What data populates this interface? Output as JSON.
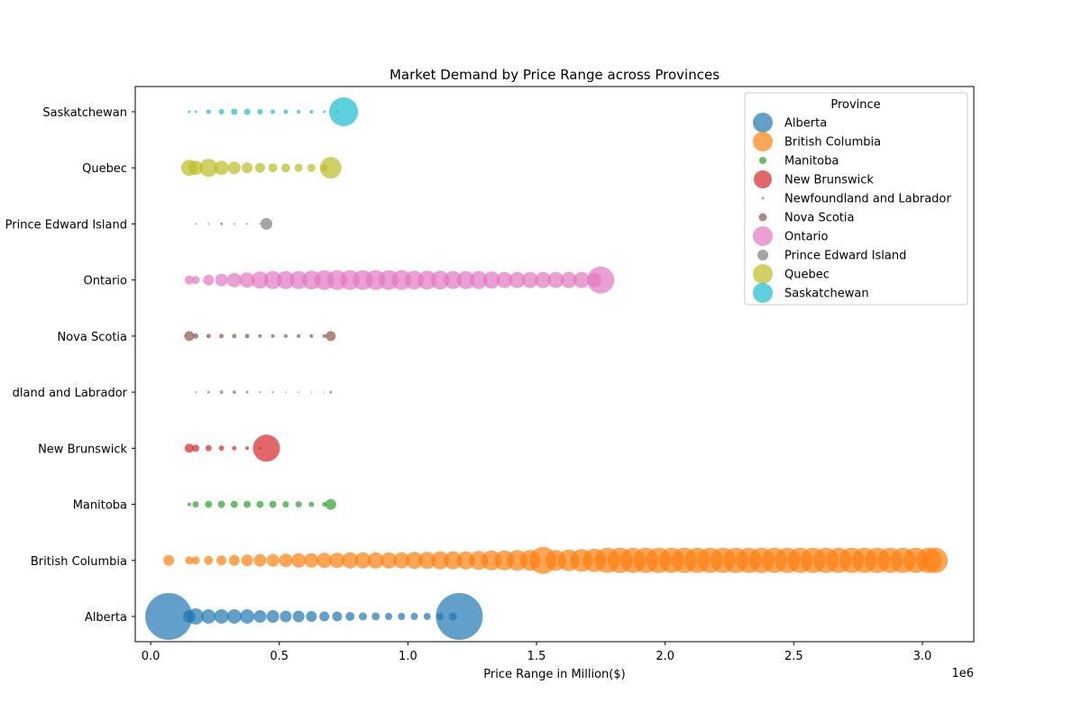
{
  "chart_data": {
    "type": "scatter",
    "title": "Market Demand by Price Range across Provinces",
    "xlabel": "Price Range in Million($)",
    "ylabel": "",
    "x_offset_label": "1e6",
    "xlim": [
      -60000,
      3200000
    ],
    "xticks": [
      0,
      500000,
      1000000,
      1500000,
      2000000,
      2500000,
      3000000
    ],
    "xtick_labels": [
      "0.0",
      "0.5",
      "1.0",
      "1.5",
      "2.0",
      "2.5",
      "3.0"
    ],
    "categories": [
      "Alberta",
      "British Columbia",
      "Manitoba",
      "New Brunswick",
      "Newfoundland and Labrador",
      "Nova Scotia",
      "Ontario",
      "Prince Edward Island",
      "Quebec",
      "Saskatchewan"
    ],
    "ytick_labels": [
      "Alberta",
      "British Columbia",
      "Manitoba",
      "New Brunswick",
      "dland and Labrador",
      "Nova Scotia",
      "Ontario",
      "Prince Edward Island",
      "Quebec",
      "Saskatchewan"
    ],
    "legend_title": "Province",
    "legend_position": "top-right",
    "grid": false,
    "series": [
      {
        "name": "Alberta",
        "color": "#1f77b4",
        "points": [
          [
            70000,
            26
          ],
          [
            150000,
            7
          ],
          [
            175000,
            9
          ],
          [
            225000,
            8
          ],
          [
            275000,
            8
          ],
          [
            325000,
            8
          ],
          [
            375000,
            8
          ],
          [
            425000,
            7
          ],
          [
            475000,
            7
          ],
          [
            525000,
            6.5
          ],
          [
            575000,
            6.5
          ],
          [
            625000,
            6
          ],
          [
            675000,
            5.5
          ],
          [
            725000,
            5.5
          ],
          [
            775000,
            5
          ],
          [
            825000,
            4.5
          ],
          [
            875000,
            4.5
          ],
          [
            925000,
            4
          ],
          [
            975000,
            4
          ],
          [
            1025000,
            4
          ],
          [
            1075000,
            4
          ],
          [
            1125000,
            4
          ],
          [
            1175000,
            4.5
          ],
          [
            1200000,
            26
          ]
        ]
      },
      {
        "name": "British Columbia",
        "color": "#ff7f0e",
        "points": [
          [
            70000,
            6
          ],
          [
            150000,
            4.5
          ],
          [
            175000,
            4.5
          ],
          [
            225000,
            5
          ],
          [
            275000,
            5.5
          ],
          [
            325000,
            6
          ],
          [
            375000,
            6.5
          ],
          [
            425000,
            7
          ],
          [
            475000,
            7
          ],
          [
            525000,
            7.5
          ],
          [
            575000,
            8
          ],
          [
            625000,
            8
          ],
          [
            675000,
            8.5
          ],
          [
            725000,
            8.5
          ],
          [
            775000,
            9
          ],
          [
            825000,
            9
          ],
          [
            875000,
            9
          ],
          [
            925000,
            9
          ],
          [
            975000,
            9
          ],
          [
            1025000,
            9.5
          ],
          [
            1075000,
            9.5
          ],
          [
            1125000,
            10
          ],
          [
            1175000,
            10
          ],
          [
            1225000,
            10
          ],
          [
            1275000,
            10.5
          ],
          [
            1325000,
            11
          ],
          [
            1375000,
            11
          ],
          [
            1425000,
            11.5
          ],
          [
            1475000,
            11.5
          ],
          [
            1525000,
            15
          ],
          [
            1575000,
            11.5
          ],
          [
            1625000,
            12
          ],
          [
            1675000,
            12.5
          ],
          [
            1725000,
            13
          ],
          [
            1775000,
            14
          ],
          [
            1825000,
            14
          ],
          [
            1875000,
            14
          ],
          [
            1925000,
            14
          ],
          [
            1975000,
            14
          ],
          [
            2025000,
            14
          ],
          [
            2075000,
            14
          ],
          [
            2125000,
            14
          ],
          [
            2175000,
            14
          ],
          [
            2225000,
            14
          ],
          [
            2275000,
            14
          ],
          [
            2325000,
            14
          ],
          [
            2375000,
            14
          ],
          [
            2425000,
            14
          ],
          [
            2475000,
            14
          ],
          [
            2525000,
            14
          ],
          [
            2575000,
            14
          ],
          [
            2625000,
            14
          ],
          [
            2675000,
            14
          ],
          [
            2725000,
            14
          ],
          [
            2775000,
            14
          ],
          [
            2825000,
            14
          ],
          [
            2875000,
            14
          ],
          [
            2925000,
            14
          ],
          [
            2975000,
            14
          ],
          [
            3025000,
            14
          ],
          [
            3050000,
            14
          ]
        ]
      },
      {
        "name": "Manitoba",
        "color": "#2ca02c",
        "points": [
          [
            150000,
            2
          ],
          [
            175000,
            3.5
          ],
          [
            225000,
            4
          ],
          [
            275000,
            4
          ],
          [
            325000,
            4
          ],
          [
            375000,
            4
          ],
          [
            425000,
            4
          ],
          [
            475000,
            4
          ],
          [
            525000,
            3.5
          ],
          [
            575000,
            3.5
          ],
          [
            625000,
            3
          ],
          [
            675000,
            2.5
          ],
          [
            700000,
            6
          ]
        ]
      },
      {
        "name": "New Brunswick",
        "color": "#d62728",
        "points": [
          [
            150000,
            5
          ],
          [
            175000,
            4
          ],
          [
            225000,
            3.5
          ],
          [
            275000,
            3
          ],
          [
            325000,
            2.5
          ],
          [
            375000,
            2
          ],
          [
            425000,
            1.5
          ],
          [
            450000,
            15
          ]
        ]
      },
      {
        "name": "Newfoundland and Labrador",
        "color": "#9467bd",
        "points": [
          [
            175000,
            1
          ],
          [
            225000,
            1.5
          ],
          [
            275000,
            2
          ],
          [
            325000,
            2
          ],
          [
            375000,
            1.5
          ],
          [
            425000,
            1
          ],
          [
            475000,
            1
          ],
          [
            525000,
            0.8
          ],
          [
            575000,
            0.8
          ],
          [
            625000,
            0.7
          ],
          [
            675000,
            0.7
          ],
          [
            700000,
            1.5
          ]
        ]
      },
      {
        "name": "Nova Scotia",
        "color": "#8c564b",
        "points": [
          [
            150000,
            5.5
          ],
          [
            175000,
            3
          ],
          [
            225000,
            2.5
          ],
          [
            275000,
            2.5
          ],
          [
            325000,
            2.5
          ],
          [
            375000,
            2.5
          ],
          [
            425000,
            2
          ],
          [
            475000,
            2
          ],
          [
            525000,
            2
          ],
          [
            575000,
            2
          ],
          [
            625000,
            2
          ],
          [
            675000,
            2
          ],
          [
            700000,
            5.5
          ]
        ]
      },
      {
        "name": "Ontario",
        "color": "#e377c2",
        "points": [
          [
            150000,
            5
          ],
          [
            175000,
            4.5
          ],
          [
            225000,
            6
          ],
          [
            275000,
            7
          ],
          [
            325000,
            8
          ],
          [
            375000,
            8.5
          ],
          [
            425000,
            9.5
          ],
          [
            475000,
            10
          ],
          [
            525000,
            10
          ],
          [
            575000,
            10
          ],
          [
            625000,
            10.5
          ],
          [
            675000,
            11
          ],
          [
            725000,
            11
          ],
          [
            775000,
            11
          ],
          [
            825000,
            11
          ],
          [
            875000,
            11
          ],
          [
            925000,
            11
          ],
          [
            975000,
            11
          ],
          [
            1025000,
            10.5
          ],
          [
            1075000,
            10.5
          ],
          [
            1125000,
            10.5
          ],
          [
            1175000,
            10
          ],
          [
            1225000,
            10
          ],
          [
            1275000,
            10
          ],
          [
            1325000,
            9.5
          ],
          [
            1375000,
            9
          ],
          [
            1425000,
            9
          ],
          [
            1475000,
            9
          ],
          [
            1525000,
            9
          ],
          [
            1575000,
            9
          ],
          [
            1625000,
            9
          ],
          [
            1675000,
            9
          ],
          [
            1725000,
            8
          ],
          [
            1750000,
            15
          ]
        ]
      },
      {
        "name": "Prince Edward Island",
        "color": "#7f7f7f",
        "points": [
          [
            175000,
            1
          ],
          [
            225000,
            1
          ],
          [
            275000,
            1.5
          ],
          [
            325000,
            1
          ],
          [
            375000,
            1
          ],
          [
            425000,
            1
          ],
          [
            450000,
            6.5
          ]
        ]
      },
      {
        "name": "Quebec",
        "color": "#bcbd22",
        "points": [
          [
            150000,
            9
          ],
          [
            175000,
            8
          ],
          [
            225000,
            10
          ],
          [
            275000,
            8
          ],
          [
            325000,
            7
          ],
          [
            375000,
            6
          ],
          [
            425000,
            5.5
          ],
          [
            475000,
            5
          ],
          [
            525000,
            5
          ],
          [
            575000,
            4.5
          ],
          [
            625000,
            4.5
          ],
          [
            675000,
            4
          ],
          [
            700000,
            12
          ]
        ]
      },
      {
        "name": "Saskatchewan",
        "color": "#17becf",
        "points": [
          [
            150000,
            1.5
          ],
          [
            175000,
            1.5
          ],
          [
            225000,
            2.5
          ],
          [
            275000,
            3
          ],
          [
            325000,
            3.5
          ],
          [
            375000,
            3.5
          ],
          [
            425000,
            3
          ],
          [
            475000,
            2.5
          ],
          [
            525000,
            2.5
          ],
          [
            575000,
            2
          ],
          [
            625000,
            2
          ],
          [
            675000,
            1.5
          ],
          [
            725000,
            1.5
          ],
          [
            750000,
            16
          ]
        ]
      }
    ]
  }
}
